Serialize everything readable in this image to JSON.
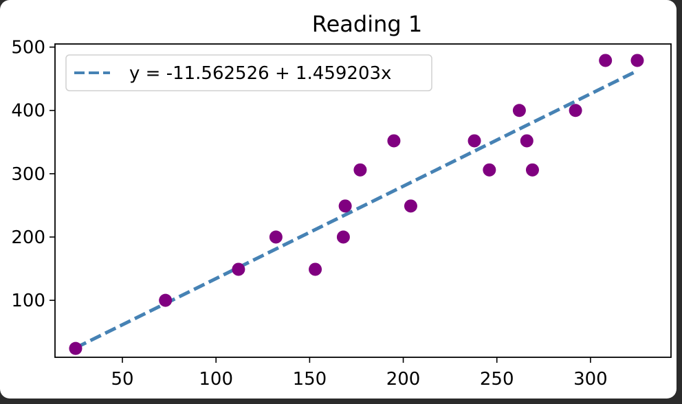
{
  "chart_data": {
    "type": "scatter",
    "title": "Reading 1",
    "xlabel": "",
    "ylabel": "",
    "xlim": [
      14,
      343
    ],
    "ylim": [
      10,
      505
    ],
    "xticks": [
      50,
      100,
      150,
      200,
      250,
      300
    ],
    "yticks": [
      100,
      200,
      300,
      400,
      500
    ],
    "grid": false,
    "legend_position": "top-left",
    "points": [
      {
        "x": 25,
        "y": 24
      },
      {
        "x": 73,
        "y": 100
      },
      {
        "x": 112,
        "y": 149
      },
      {
        "x": 132,
        "y": 200
      },
      {
        "x": 153,
        "y": 149
      },
      {
        "x": 168,
        "y": 200
      },
      {
        "x": 169,
        "y": 249
      },
      {
        "x": 177,
        "y": 306
      },
      {
        "x": 195,
        "y": 352
      },
      {
        "x": 204,
        "y": 249
      },
      {
        "x": 238,
        "y": 352
      },
      {
        "x": 246,
        "y": 306
      },
      {
        "x": 262,
        "y": 400
      },
      {
        "x": 266,
        "y": 352
      },
      {
        "x": 269,
        "y": 306
      },
      {
        "x": 292,
        "y": 400
      },
      {
        "x": 308,
        "y": 479
      },
      {
        "x": 325,
        "y": 479
      }
    ],
    "fit_line": {
      "label": "y = -11.562526 + 1.459203x",
      "intercept": -11.562526,
      "slope": 1.459203,
      "x_range": [
        25,
        325
      ],
      "style": "dashed"
    },
    "colors": {
      "points": "#800080",
      "line": "#4682b4"
    }
  }
}
